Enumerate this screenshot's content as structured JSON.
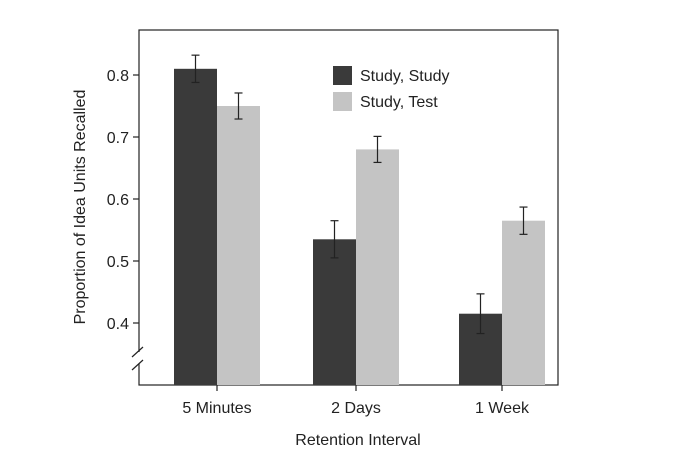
{
  "chart_data": {
    "type": "bar",
    "xlabel": "Retention Interval",
    "ylabel": "Proportion of Idea Units Recalled",
    "categories": [
      "5 Minutes",
      "2 Days",
      "1 Week"
    ],
    "series": [
      {
        "name": "Study, Study",
        "color": "#3a3a3a",
        "values": [
          0.81,
          0.535,
          0.415
        ],
        "error": [
          0.022,
          0.03,
          0.032
        ]
      },
      {
        "name": "Study, Test",
        "color": "#c4c4c4",
        "values": [
          0.75,
          0.68,
          0.565
        ],
        "error": [
          0.021,
          0.021,
          0.022
        ]
      }
    ],
    "yticks": [
      0.4,
      0.5,
      0.6,
      0.7,
      0.8
    ],
    "ytick_labels": [
      "0.4",
      "0.5",
      "0.6",
      "0.7",
      "0.8"
    ],
    "ylim": [
      0.3,
      0.87
    ],
    "axis_break": true,
    "legend_position": "top-right",
    "grid": false
  }
}
